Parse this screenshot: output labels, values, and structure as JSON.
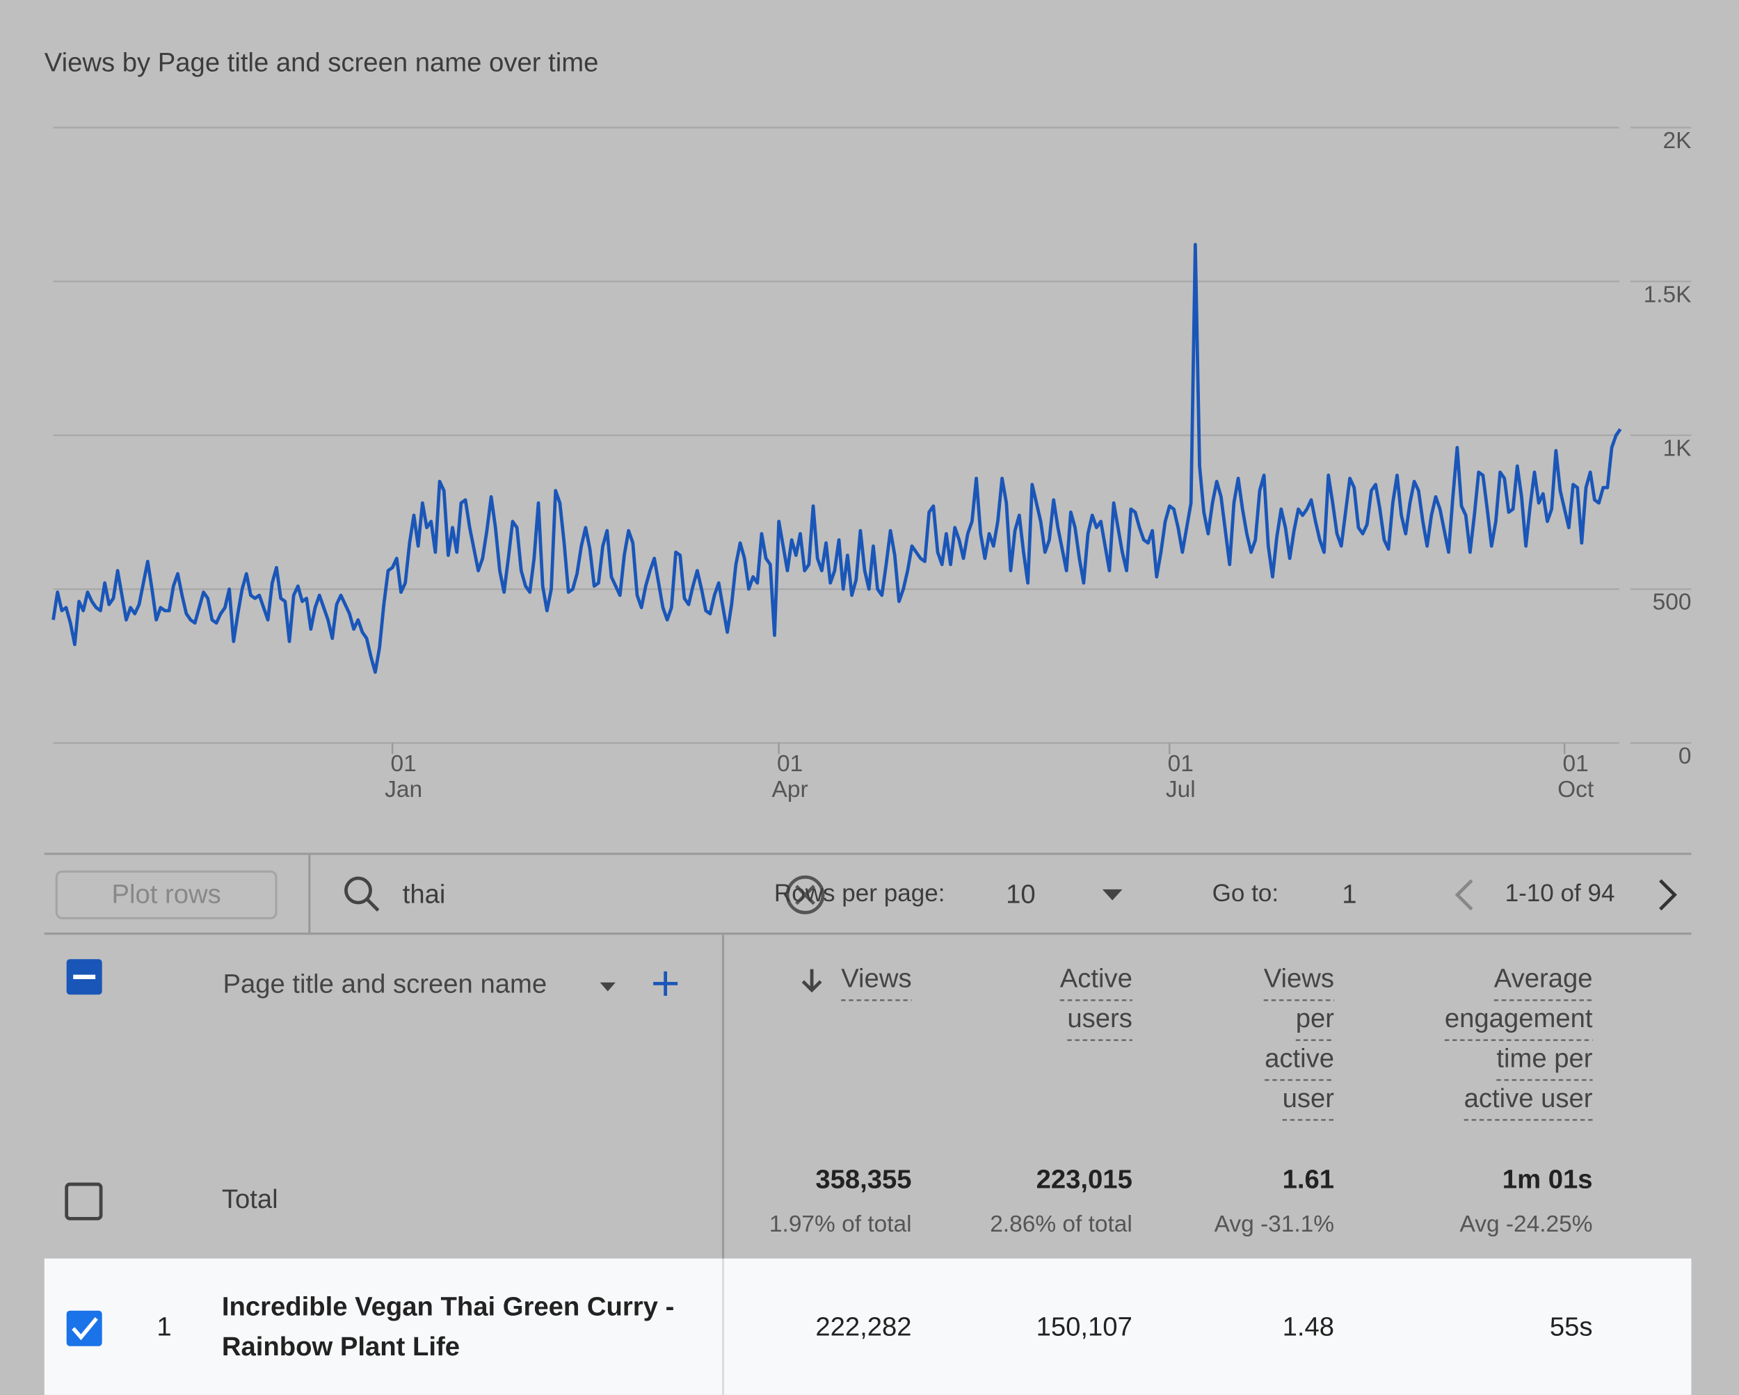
{
  "chart_data": {
    "type": "line",
    "title": "Views by Page title and screen name over time",
    "color": "#1a56b8",
    "values": [
      400,
      490,
      430,
      440,
      390,
      320,
      460,
      430,
      490,
      460,
      440,
      430,
      520,
      450,
      470,
      560,
      480,
      400,
      440,
      420,
      450,
      520,
      590,
      500,
      400,
      440,
      430,
      430,
      510,
      550,
      480,
      420,
      400,
      390,
      440,
      490,
      470,
      400,
      390,
      420,
      440,
      500,
      330,
      420,
      500,
      550,
      480,
      470,
      480,
      440,
      400,
      520,
      570,
      470,
      460,
      330,
      480,
      510,
      460,
      470,
      370,
      440,
      480,
      440,
      400,
      340,
      450,
      480,
      450,
      420,
      370,
      400,
      360,
      340,
      280,
      230,
      310,
      450,
      560,
      570,
      600,
      490,
      520,
      650,
      740,
      640,
      780,
      700,
      720,
      620,
      850,
      820,
      610,
      700,
      620,
      780,
      790,
      700,
      630,
      560,
      600,
      690,
      800,
      700,
      560,
      490,
      600,
      720,
      700,
      560,
      510,
      490,
      600,
      780,
      510,
      430,
      500,
      820,
      780,
      650,
      490,
      500,
      550,
      640,
      700,
      630,
      510,
      520,
      640,
      690,
      540,
      510,
      480,
      610,
      690,
      650,
      480,
      440,
      510,
      560,
      600,
      520,
      440,
      400,
      440,
      620,
      610,
      470,
      450,
      510,
      560,
      500,
      430,
      420,
      480,
      520,
      440,
      360,
      450,
      580,
      650,
      600,
      500,
      540,
      520,
      680,
      600,
      580,
      350,
      720,
      640,
      560,
      660,
      610,
      680,
      560,
      580,
      770,
      600,
      560,
      650,
      520,
      560,
      660,
      500,
      610,
      480,
      530,
      690,
      560,
      500,
      640,
      500,
      480,
      580,
      690,
      610,
      460,
      500,
      560,
      640,
      620,
      600,
      590,
      750,
      770,
      620,
      580,
      680,
      580,
      700,
      660,
      600,
      680,
      720,
      860,
      680,
      600,
      680,
      640,
      720,
      860,
      780,
      560,
      690,
      740,
      620,
      520,
      840,
      780,
      720,
      620,
      660,
      790,
      700,
      630,
      560,
      750,
      700,
      600,
      520,
      680,
      740,
      700,
      720,
      640,
      560,
      780,
      700,
      620,
      560,
      760,
      750,
      700,
      660,
      650,
      690,
      540,
      620,
      720,
      770,
      760,
      700,
      620,
      700,
      780,
      1620,
      900,
      750,
      680,
      780,
      850,
      800,
      690,
      580,
      780,
      860,
      760,
      680,
      620,
      660,
      820,
      870,
      640,
      540,
      670,
      760,
      700,
      600,
      690,
      760,
      740,
      760,
      790,
      720,
      660,
      620,
      870,
      780,
      680,
      640,
      750,
      860,
      830,
      700,
      680,
      710,
      820,
      840,
      760,
      660,
      630,
      780,
      870,
      740,
      680,
      780,
      850,
      820,
      720,
      640,
      740,
      800,
      760,
      690,
      620,
      800,
      960,
      770,
      740,
      620,
      740,
      880,
      870,
      760,
      640,
      720,
      880,
      860,
      750,
      760,
      900,
      800,
      640,
      770,
      880,
      780,
      810,
      720,
      760,
      950,
      820,
      760,
      700,
      840,
      830,
      650,
      830,
      880,
      790,
      780,
      830,
      830,
      960,
      1000,
      1020
    ],
    "xlim": [
      0,
      365
    ],
    "xticks": [
      {
        "value": 79,
        "label": [
          "01",
          "Jan"
        ]
      },
      {
        "value": 169,
        "label": [
          "01",
          "Apr"
        ]
      },
      {
        "value": 260,
        "label": [
          "01",
          "Jul"
        ]
      },
      {
        "value": 352,
        "label": [
          "01",
          "Oct"
        ]
      }
    ],
    "ylim": [
      0,
      2000
    ],
    "yticks": [
      {
        "value": 2000,
        "label": "2K"
      },
      {
        "value": 1500,
        "label": "1.5K"
      },
      {
        "value": 1000,
        "label": "1K"
      },
      500,
      0
    ],
    "grid": true
  },
  "toolbar": {
    "plot_rows": "Plot rows",
    "search": "thai",
    "rows_per_page_label": "Rows per page:",
    "rows_per_page": "10",
    "goto_label": "Go to:",
    "goto": "1",
    "pagination": "1-10 of 94"
  },
  "table": {
    "dimension": "Page title and screen name",
    "columns": [
      [
        "Views"
      ],
      [
        "Active",
        "users"
      ],
      [
        "Views",
        "per",
        "active",
        "user"
      ],
      [
        "Average",
        "engagement",
        "time per",
        "active user"
      ]
    ],
    "total": {
      "label": "Total",
      "values": [
        "358,355",
        "223,015",
        "1.61",
        "1m 01s"
      ],
      "notes": [
        "1.97% of total",
        "2.86% of total",
        "Avg -31.1%",
        "Avg -24.25%"
      ]
    },
    "rows": [
      {
        "rank": "1",
        "title": [
          "Incredible Vegan Thai Green Curry -",
          "Rainbow Plant Life"
        ],
        "values": [
          "222,282",
          "150,107",
          "1.48",
          "55s"
        ]
      }
    ]
  }
}
